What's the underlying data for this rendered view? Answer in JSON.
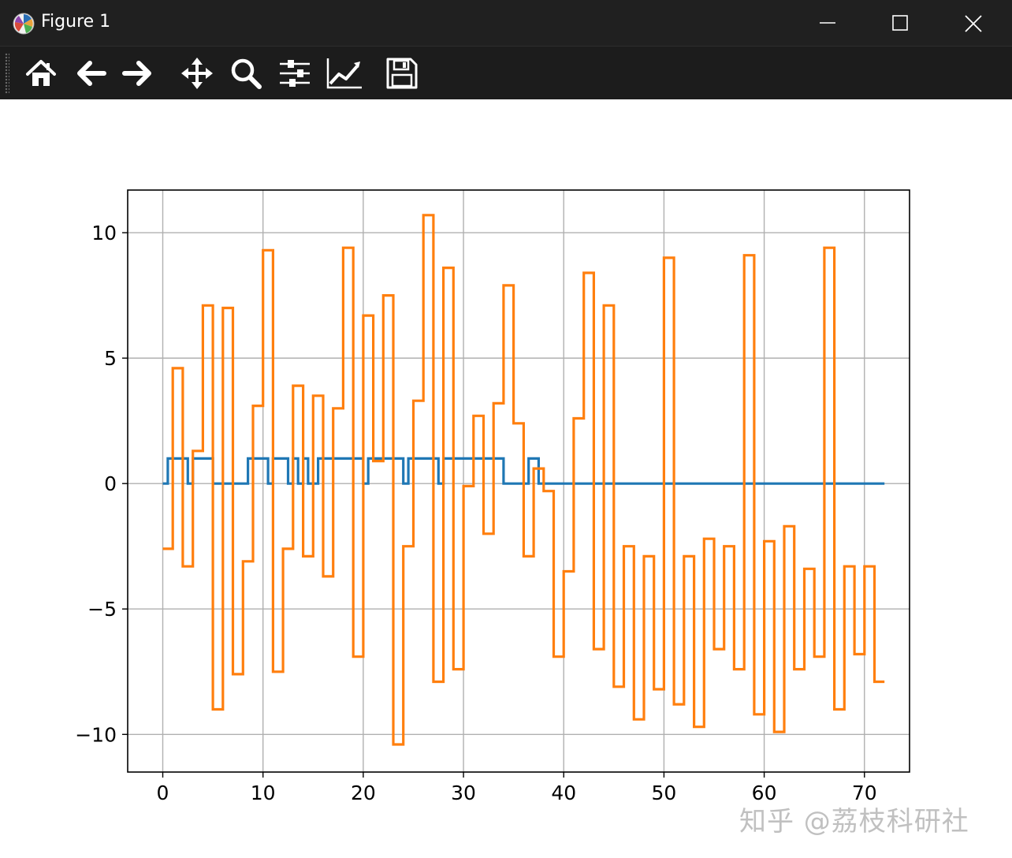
{
  "window": {
    "title": "Figure 1",
    "watermark": "知乎 @荔枝科研社"
  },
  "toolbar": {
    "buttons": [
      {
        "name": "home",
        "icon": "home-icon"
      },
      {
        "name": "back",
        "icon": "back-arrow-icon"
      },
      {
        "name": "forward",
        "icon": "forward-arrow-icon"
      },
      {
        "name": "pan",
        "icon": "move-icon"
      },
      {
        "name": "zoom",
        "icon": "magnifier-icon"
      },
      {
        "name": "configure-subplots",
        "icon": "sliders-icon"
      },
      {
        "name": "edit-axis",
        "icon": "line-chart-icon"
      },
      {
        "name": "save",
        "icon": "floppy-disk-icon"
      }
    ]
  },
  "chart_data": {
    "type": "line",
    "drawstyle": "steps-post",
    "xlim": [
      -3.5,
      74.5
    ],
    "ylim": [
      -11.5,
      11.7
    ],
    "xticks": [
      0,
      10,
      20,
      30,
      40,
      50,
      60,
      70
    ],
    "yticks": [
      10,
      5,
      0,
      -5,
      -10
    ],
    "ytick_labels": [
      "10",
      "5",
      "0",
      "−5",
      "−10"
    ],
    "grid": true,
    "series": [
      {
        "color": "#1f77b4",
        "x_start": 0,
        "step": 0.5,
        "values": [
          0,
          1,
          1,
          1,
          1,
          0,
          1,
          1,
          1,
          1,
          0,
          0,
          0,
          0,
          0,
          0,
          0,
          1,
          1,
          1,
          1,
          0,
          1,
          1,
          1,
          0,
          1,
          0,
          1,
          0,
          0,
          1,
          1,
          1,
          1,
          1,
          1,
          1,
          1,
          1,
          0,
          1,
          1,
          1,
          1,
          1,
          1,
          1,
          0,
          1,
          1,
          1,
          1,
          1,
          1,
          0,
          1,
          1,
          1,
          1,
          1,
          1,
          1,
          1,
          1,
          1,
          1,
          1,
          0,
          0,
          0,
          0,
          0,
          1,
          1,
          0,
          0,
          0,
          0,
          0,
          0,
          0,
          0,
          0,
          0,
          0,
          0,
          0,
          0,
          0,
          0,
          0,
          0,
          0,
          0,
          0,
          0,
          0,
          0,
          0,
          0,
          0,
          0,
          0,
          0,
          0,
          0,
          0,
          0,
          0,
          0,
          0,
          0,
          0,
          0,
          0,
          0,
          0,
          0,
          0,
          0,
          0,
          0,
          0,
          0,
          0,
          0,
          0,
          0,
          0,
          0,
          0,
          0,
          0,
          0,
          0,
          0,
          0,
          0,
          0,
          0,
          0,
          0,
          0
        ]
      },
      {
        "color": "#ff7f0e",
        "x_start": 0,
        "step": 1,
        "values": [
          -2.6,
          4.6,
          -3.3,
          1.3,
          7.1,
          -9.0,
          7.0,
          -7.6,
          -3.1,
          3.1,
          9.3,
          -7.5,
          -2.6,
          3.9,
          -2.9,
          3.5,
          -3.7,
          3.0,
          9.4,
          -6.9,
          6.7,
          0.9,
          7.5,
          -10.4,
          -2.5,
          3.3,
          10.7,
          -7.9,
          8.6,
          -7.4,
          -0.1,
          2.7,
          -2.0,
          3.2,
          7.9,
          2.4,
          -2.9,
          0.6,
          -0.3,
          -6.9,
          -3.5,
          2.6,
          8.4,
          -6.6,
          7.1,
          -8.1,
          -2.5,
          -9.4,
          -2.9,
          -8.2,
          9.0,
          -8.8,
          -2.9,
          -9.7,
          -2.2,
          -6.6,
          -2.5,
          -7.4,
          9.1,
          -9.2,
          -2.3,
          -9.9,
          -1.7,
          -7.4,
          -3.4,
          -6.9,
          9.4,
          -9.0,
          -3.3,
          -6.8,
          -3.3,
          -7.9
        ]
      }
    ]
  }
}
